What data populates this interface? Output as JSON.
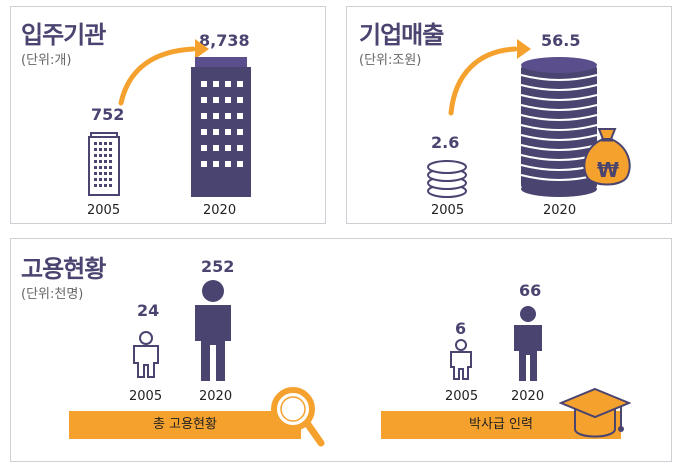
{
  "colors": {
    "purple": "#4a4470",
    "orange": "#f5a12e"
  },
  "tenants": {
    "title": "입주기관",
    "unit": "(단위:개)",
    "items": [
      {
        "year": "2005",
        "value": "752"
      },
      {
        "year": "2020",
        "value": "8,738"
      }
    ]
  },
  "sales": {
    "title": "기업매출",
    "unit": "(단위:조원)",
    "items": [
      {
        "year": "2005",
        "value": "2.6"
      },
      {
        "year": "2020",
        "value": "56.5"
      }
    ],
    "currency_symbol": "₩"
  },
  "employment": {
    "title": "고용현황",
    "unit": "(단위:천명)",
    "total": {
      "label": "총 고용현황",
      "items": [
        {
          "year": "2005",
          "value": "24"
        },
        {
          "year": "2020",
          "value": "252"
        }
      ]
    },
    "phd": {
      "label": "박사급 인력",
      "items": [
        {
          "year": "2005",
          "value": "6"
        },
        {
          "year": "2020",
          "value": "66"
        }
      ]
    }
  },
  "icons": [
    "small-building-icon",
    "tall-building-icon",
    "growth-arrow-icon",
    "coin-stack-icon",
    "money-bag-icon",
    "person-outline-icon",
    "person-filled-icon",
    "magnifier-icon",
    "graduation-cap-icon"
  ]
}
